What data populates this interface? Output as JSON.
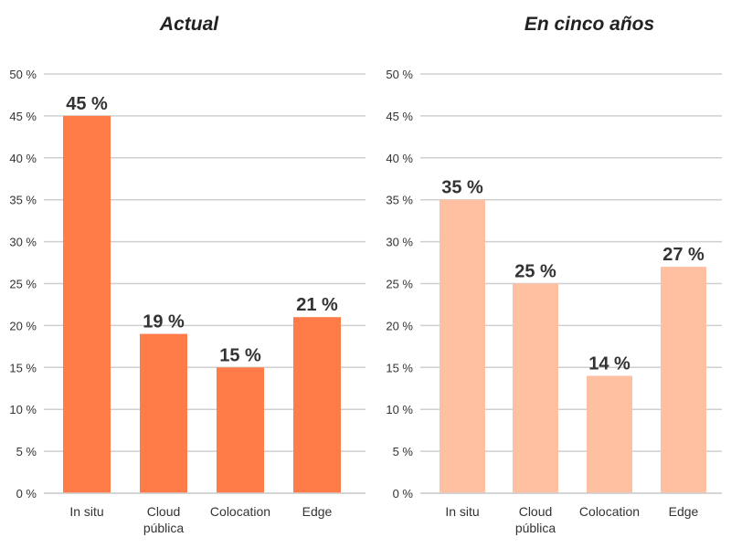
{
  "chart_data": [
    {
      "type": "bar",
      "title": "Actual",
      "categories": [
        [
          "In situ"
        ],
        [
          "Cloud",
          "pública"
        ],
        [
          "Colocation"
        ],
        [
          "Edge"
        ]
      ],
      "values": [
        45,
        19,
        15,
        21
      ],
      "value_labels": [
        "45 %",
        "19 %",
        "15 %",
        "21 %"
      ],
      "yticks": [
        "0 %",
        "5 %",
        "10 %",
        "15 %",
        "20 %",
        "25 %",
        "30 %",
        "35 %",
        "40 %",
        "45 %",
        "50 %"
      ],
      "ylim": [
        0,
        50
      ],
      "grid": true,
      "color": "#FF7B47"
    },
    {
      "type": "bar",
      "title": "En cinco años",
      "categories": [
        [
          "In situ"
        ],
        [
          "Cloud",
          "pública"
        ],
        [
          "Colocation"
        ],
        [
          "Edge"
        ]
      ],
      "values": [
        35,
        25,
        14,
        27
      ],
      "value_labels": [
        "35 %",
        "25 %",
        "14 %",
        "27 %"
      ],
      "yticks": [
        "0 %",
        "5 %",
        "10 %",
        "15 %",
        "20 %",
        "25 %",
        "30 %",
        "35 %",
        "40 %",
        "45 %",
        "50 %"
      ],
      "ylim": [
        0,
        50
      ],
      "grid": true,
      "color": "#FFBFA1"
    }
  ]
}
